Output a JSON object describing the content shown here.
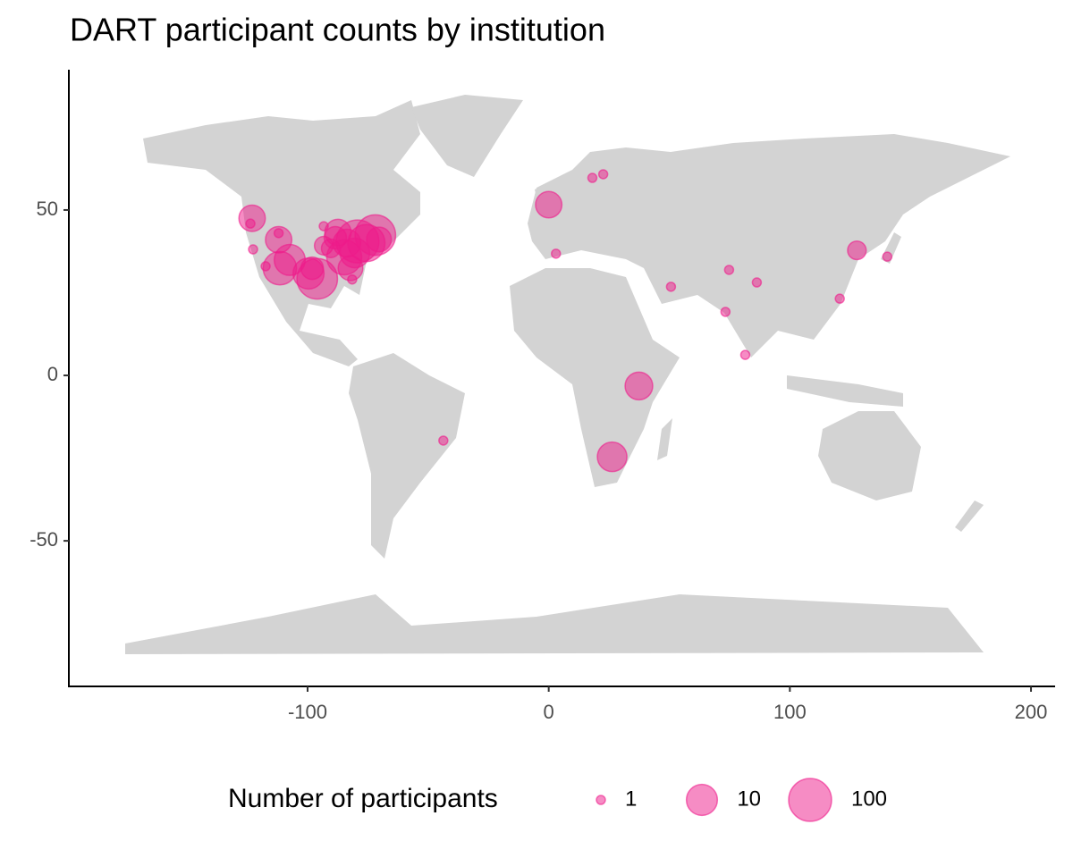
{
  "chart_data": {
    "type": "scatter",
    "title": "DART participant counts by institution",
    "color": "#ee1a8a",
    "x": [
      -123,
      -123.7,
      -122.6,
      -117.4,
      -112,
      -112,
      -111.5,
      -107.4,
      -99.6,
      -98.1,
      -96,
      -93.3,
      -93.3,
      -90.4,
      -88.5,
      -87.4,
      -84.8,
      -83.7,
      -82.2,
      -81.5,
      -80.4,
      -79.3,
      -75.6,
      -71.9,
      -70.4,
      0,
      3,
      18.1,
      22.6,
      37.4,
      26.3,
      -43.7,
      50.7,
      74.8,
      86.3,
      73.3,
      81.5,
      120.7,
      127.8,
      140.4
    ],
    "values": [
      47.5,
      45.9,
      38.1,
      33,
      43,
      41,
      32.4,
      34.9,
      30.8,
      32.4,
      29.2,
      45.1,
      39.2,
      38.4,
      41.6,
      43.2,
      35.7,
      40,
      32.4,
      29,
      37,
      40.5,
      40,
      42.4,
      41.1,
      51.6,
      36.8,
      59.7,
      60.8,
      -3.2,
      -24.6,
      -19.7,
      26.8,
      31.9,
      28.1,
      19.2,
      6.2,
      23.2,
      37.8,
      35.9
    ],
    "sizes": [
      5,
      1,
      1,
      1,
      1,
      5,
      15,
      10,
      10,
      3,
      60,
      1,
      2,
      2,
      3,
      5,
      20,
      6,
      4,
      1,
      8,
      100,
      30,
      60,
      4,
      5,
      1,
      1,
      1,
      6,
      8,
      1,
      1,
      1,
      1,
      1,
      1,
      1,
      2,
      1
    ],
    "xlim": [
      -199,
      210
    ],
    "ylim": [
      -94,
      92.4
    ],
    "xticks": [
      -100,
      0,
      100,
      200
    ],
    "yticks": [
      -50,
      0,
      50
    ],
    "size_legend": {
      "title": "Number of participants",
      "values": [
        1,
        10,
        100
      ]
    }
  }
}
